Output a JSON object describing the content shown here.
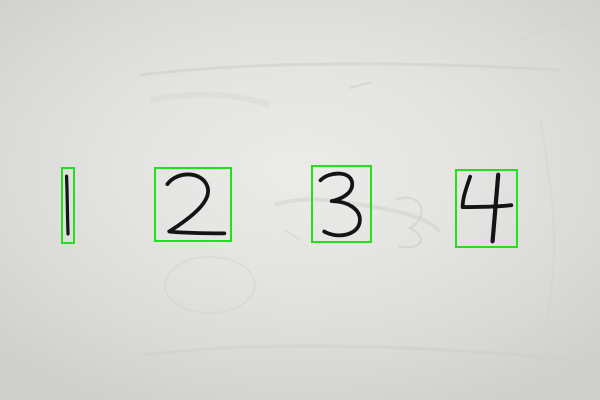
{
  "colors": {
    "box_outline": "#22e01c",
    "ink": "#141414",
    "board": "#e6e6e4"
  },
  "digits": [
    {
      "label": "1"
    },
    {
      "label": "2"
    },
    {
      "label": "3"
    },
    {
      "label": "4"
    }
  ]
}
